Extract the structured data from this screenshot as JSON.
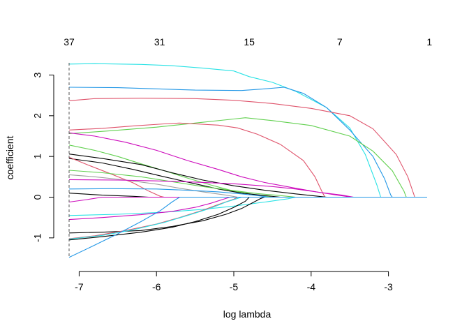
{
  "chart_data": {
    "type": "line",
    "xlabel": "log lambda",
    "ylabel": "coefficient",
    "xlim": [
      -7.13,
      -2.5
    ],
    "ylim": [
      -1.5,
      3.3
    ],
    "x_ticks": [
      -7,
      -6,
      -5,
      -4,
      -3
    ],
    "y_ticks": [
      -1,
      0,
      1,
      2,
      3
    ],
    "top_axis": {
      "at": [
        -7.13,
        -5.96,
        -4.8,
        -3.63,
        -2.47
      ],
      "labels": [
        "37",
        "31",
        "15",
        "7",
        "1"
      ]
    },
    "reference_line_x": -7.13,
    "series": [
      {
        "color": "#28e2e5",
        "points": [
          [
            -7.13,
            3.27
          ],
          [
            -6.8,
            3.28
          ],
          [
            -6.2,
            3.26
          ],
          [
            -5.8,
            3.23
          ],
          [
            -5.4,
            3.17
          ],
          [
            -5.0,
            3.1
          ],
          [
            -4.8,
            2.96
          ],
          [
            -4.5,
            2.82
          ],
          [
            -4.2,
            2.6
          ],
          [
            -3.8,
            2.2
          ],
          [
            -3.5,
            1.7
          ],
          [
            -3.3,
            1.05
          ],
          [
            -3.15,
            0.3
          ],
          [
            -3.1,
            0.0
          ],
          [
            -2.5,
            0.0
          ]
        ]
      },
      {
        "color": "#2297e6",
        "points": [
          [
            -7.13,
            2.7
          ],
          [
            -6.5,
            2.69
          ],
          [
            -6.0,
            2.66
          ],
          [
            -5.5,
            2.63
          ],
          [
            -4.9,
            2.62
          ],
          [
            -4.6,
            2.66
          ],
          [
            -4.35,
            2.7
          ],
          [
            -4.1,
            2.55
          ],
          [
            -3.8,
            2.2
          ],
          [
            -3.5,
            1.65
          ],
          [
            -3.2,
            1.0
          ],
          [
            -3.05,
            0.45
          ],
          [
            -2.97,
            0.05
          ],
          [
            -2.95,
            0.0
          ],
          [
            -2.5,
            0.0
          ]
        ]
      },
      {
        "color": "#df536b",
        "points": [
          [
            -7.13,
            2.37
          ],
          [
            -6.8,
            2.42
          ],
          [
            -6.2,
            2.43
          ],
          [
            -5.5,
            2.42
          ],
          [
            -5.0,
            2.38
          ],
          [
            -4.5,
            2.3
          ],
          [
            -4.0,
            2.18
          ],
          [
            -3.5,
            2.0
          ],
          [
            -3.2,
            1.68
          ],
          [
            -2.9,
            1.05
          ],
          [
            -2.75,
            0.5
          ],
          [
            -2.66,
            0.0
          ],
          [
            -2.5,
            0.0
          ]
        ]
      },
      {
        "color": "#61d04f",
        "points": [
          [
            -7.13,
            1.56
          ],
          [
            -6.6,
            1.63
          ],
          [
            -6.0,
            1.72
          ],
          [
            -5.5,
            1.82
          ],
          [
            -5.0,
            1.92
          ],
          [
            -4.85,
            1.95
          ],
          [
            -4.5,
            1.88
          ],
          [
            -4.0,
            1.76
          ],
          [
            -3.5,
            1.5
          ],
          [
            -3.2,
            1.13
          ],
          [
            -2.95,
            0.65
          ],
          [
            -2.8,
            0.15
          ],
          [
            -2.77,
            0.0
          ],
          [
            -2.5,
            0.0
          ]
        ]
      },
      {
        "color": "#df536b",
        "points": [
          [
            -7.13,
            1.65
          ],
          [
            -6.7,
            1.69
          ],
          [
            -6.3,
            1.75
          ],
          [
            -5.9,
            1.8
          ],
          [
            -5.7,
            1.82
          ],
          [
            -5.5,
            1.8
          ],
          [
            -5.2,
            1.77
          ],
          [
            -4.95,
            1.7
          ],
          [
            -4.7,
            1.55
          ],
          [
            -4.4,
            1.3
          ],
          [
            -4.1,
            0.9
          ],
          [
            -3.95,
            0.5
          ],
          [
            -3.85,
            0.1
          ],
          [
            -3.82,
            0.0
          ],
          [
            -2.5,
            0.0
          ]
        ]
      },
      {
        "color": "#cd0bbc",
        "points": [
          [
            -7.13,
            1.58
          ],
          [
            -6.8,
            1.5
          ],
          [
            -6.4,
            1.35
          ],
          [
            -6.0,
            1.15
          ],
          [
            -5.6,
            0.9
          ],
          [
            -5.2,
            0.68
          ],
          [
            -4.9,
            0.5
          ],
          [
            -4.6,
            0.36
          ],
          [
            -4.2,
            0.22
          ],
          [
            -3.9,
            0.12
          ],
          [
            -3.6,
            0.05
          ],
          [
            -3.45,
            0.0
          ],
          [
            -2.5,
            0.0
          ]
        ]
      },
      {
        "color": "#61d04f",
        "points": [
          [
            -7.13,
            1.28
          ],
          [
            -6.8,
            1.15
          ],
          [
            -6.5,
            1.0
          ],
          [
            -6.2,
            0.82
          ],
          [
            -5.9,
            0.65
          ],
          [
            -5.6,
            0.47
          ],
          [
            -5.3,
            0.3
          ],
          [
            -5.0,
            0.15
          ],
          [
            -4.7,
            0.05
          ],
          [
            -4.5,
            0.0
          ],
          [
            -2.5,
            0.0
          ]
        ]
      },
      {
        "color": "#000000",
        "points": [
          [
            -7.13,
            1.06
          ],
          [
            -6.7,
            0.95
          ],
          [
            -6.2,
            0.8
          ],
          [
            -5.8,
            0.6
          ],
          [
            -5.4,
            0.42
          ],
          [
            -5.0,
            0.28
          ],
          [
            -4.6,
            0.17
          ],
          [
            -4.2,
            0.08
          ],
          [
            -3.9,
            0.02
          ],
          [
            -3.8,
            0.0
          ],
          [
            -2.5,
            0.0
          ]
        ]
      },
      {
        "color": "#000000",
        "points": [
          [
            -7.13,
            0.95
          ],
          [
            -6.7,
            0.84
          ],
          [
            -6.3,
            0.68
          ],
          [
            -5.9,
            0.5
          ],
          [
            -5.5,
            0.33
          ],
          [
            -5.2,
            0.2
          ],
          [
            -4.9,
            0.1
          ],
          [
            -4.6,
            0.04
          ],
          [
            -4.4,
            0.0
          ],
          [
            -2.5,
            0.0
          ]
        ]
      },
      {
        "color": "#df536b",
        "points": [
          [
            -7.13,
            0.98
          ],
          [
            -6.9,
            0.8
          ],
          [
            -6.6,
            0.58
          ],
          [
            -6.3,
            0.35
          ],
          [
            -6.1,
            0.15
          ],
          [
            -5.95,
            0.02
          ],
          [
            -5.9,
            0.0
          ],
          [
            -2.5,
            0.0
          ]
        ]
      },
      {
        "color": "#61d04f",
        "points": [
          [
            -7.13,
            0.66
          ],
          [
            -6.7,
            0.6
          ],
          [
            -6.2,
            0.5
          ],
          [
            -5.8,
            0.38
          ],
          [
            -5.4,
            0.26
          ],
          [
            -5.0,
            0.16
          ],
          [
            -4.7,
            0.09
          ],
          [
            -4.4,
            0.04
          ],
          [
            -4.2,
            0.0
          ],
          [
            -2.5,
            0.0
          ]
        ]
      },
      {
        "color": "#9e9e9e",
        "points": [
          [
            -7.13,
            0.55
          ],
          [
            -6.8,
            0.5
          ],
          [
            -6.4,
            0.42
          ],
          [
            -6.0,
            0.32
          ],
          [
            -5.7,
            0.22
          ],
          [
            -5.4,
            0.13
          ],
          [
            -5.1,
            0.05
          ],
          [
            -4.95,
            0.0
          ],
          [
            -2.5,
            0.0
          ]
        ]
      },
      {
        "color": "#cd0bbc",
        "points": [
          [
            -7.13,
            0.43
          ],
          [
            -6.5,
            0.42
          ],
          [
            -6.0,
            0.4
          ],
          [
            -5.5,
            0.37
          ],
          [
            -5.0,
            0.33
          ],
          [
            -4.5,
            0.26
          ],
          [
            -4.2,
            0.2
          ],
          [
            -3.9,
            0.12
          ],
          [
            -3.7,
            0.06
          ],
          [
            -3.55,
            0.02
          ],
          [
            -3.5,
            0.0
          ],
          [
            -2.5,
            0.0
          ]
        ]
      },
      {
        "color": "#2297e6",
        "points": [
          [
            -7.13,
            0.2
          ],
          [
            -6.6,
            0.21
          ],
          [
            -6.0,
            0.2
          ],
          [
            -5.6,
            0.17
          ],
          [
            -5.2,
            0.13
          ],
          [
            -4.9,
            0.08
          ],
          [
            -4.7,
            0.04
          ],
          [
            -4.55,
            0.0
          ],
          [
            -2.5,
            0.0
          ]
        ]
      },
      {
        "color": "#000000",
        "points": [
          [
            -7.13,
            0.1
          ],
          [
            -6.7,
            0.05
          ],
          [
            -6.3,
            0.02
          ],
          [
            -6.1,
            0.0
          ],
          [
            -2.5,
            0.0
          ]
        ]
      },
      {
        "color": "#cd0bbc",
        "points": [
          [
            -7.13,
            -0.12
          ],
          [
            -6.9,
            -0.06
          ],
          [
            -6.7,
            0.0
          ],
          [
            -2.5,
            0.0
          ]
        ]
      },
      {
        "color": "#28e2e5",
        "points": [
          [
            -7.13,
            -0.45
          ],
          [
            -6.5,
            -0.42
          ],
          [
            -5.9,
            -0.37
          ],
          [
            -5.4,
            -0.3
          ],
          [
            -5.0,
            -0.22
          ],
          [
            -4.6,
            -0.12
          ],
          [
            -4.3,
            -0.04
          ],
          [
            -4.2,
            0.0
          ],
          [
            -2.5,
            0.0
          ]
        ]
      },
      {
        "color": "#cd0bbc",
        "points": [
          [
            -7.13,
            -0.55
          ],
          [
            -6.7,
            -0.5
          ],
          [
            -6.2,
            -0.43
          ],
          [
            -5.8,
            -0.35
          ],
          [
            -5.5,
            -0.25
          ],
          [
            -5.3,
            -0.15
          ],
          [
            -5.15,
            -0.06
          ],
          [
            -5.05,
            0.0
          ],
          [
            -2.5,
            0.0
          ]
        ]
      },
      {
        "color": "#000000",
        "points": [
          [
            -7.13,
            -0.88
          ],
          [
            -6.7,
            -0.86
          ],
          [
            -6.2,
            -0.82
          ],
          [
            -5.8,
            -0.72
          ],
          [
            -5.4,
            -0.58
          ],
          [
            -5.1,
            -0.42
          ],
          [
            -4.9,
            -0.28
          ],
          [
            -4.75,
            -0.13
          ],
          [
            -4.65,
            -0.03
          ],
          [
            -4.6,
            0.0
          ],
          [
            -2.5,
            0.0
          ]
        ]
      },
      {
        "color": "#df536b",
        "points": [
          [
            -7.13,
            -1.02
          ],
          [
            -6.8,
            -0.95
          ],
          [
            -6.4,
            -0.82
          ],
          [
            -6.0,
            -0.66
          ],
          [
            -5.7,
            -0.5
          ],
          [
            -5.4,
            -0.32
          ],
          [
            -5.2,
            -0.18
          ],
          [
            -5.0,
            -0.05
          ],
          [
            -4.95,
            0.0
          ],
          [
            -2.5,
            0.0
          ]
        ]
      },
      {
        "color": "#000000",
        "points": [
          [
            -7.13,
            -1.05
          ],
          [
            -6.7,
            -0.97
          ],
          [
            -6.2,
            -0.86
          ],
          [
            -5.8,
            -0.74
          ],
          [
            -5.5,
            -0.6
          ],
          [
            -5.2,
            -0.42
          ],
          [
            -5.0,
            -0.25
          ],
          [
            -4.85,
            -0.1
          ],
          [
            -4.8,
            0.0
          ],
          [
            -2.5,
            0.0
          ]
        ]
      },
      {
        "color": "#28e2e5",
        "points": [
          [
            -7.13,
            -1.03
          ],
          [
            -6.7,
            -0.94
          ],
          [
            -6.3,
            -0.8
          ],
          [
            -5.9,
            -0.62
          ],
          [
            -5.6,
            -0.45
          ],
          [
            -5.3,
            -0.27
          ],
          [
            -5.1,
            -0.12
          ],
          [
            -4.95,
            -0.03
          ],
          [
            -4.9,
            0.0
          ],
          [
            -2.5,
            0.0
          ]
        ]
      },
      {
        "color": "#2297e6",
        "points": [
          [
            -7.13,
            -1.48
          ],
          [
            -6.8,
            -1.18
          ],
          [
            -6.5,
            -0.9
          ],
          [
            -6.2,
            -0.6
          ],
          [
            -5.95,
            -0.33
          ],
          [
            -5.8,
            -0.12
          ],
          [
            -5.7,
            0.0
          ],
          [
            -2.5,
            0.0
          ]
        ]
      }
    ]
  }
}
